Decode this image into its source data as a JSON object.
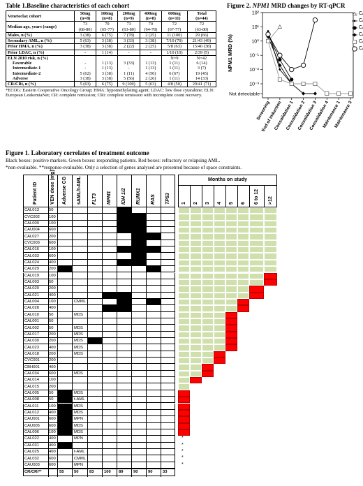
{
  "table1": {
    "title": "Table 1.Baseline characteristics of each cohort",
    "cohort_label": "Venetoclax cohort",
    "headers": [
      {
        "dose": "50mg",
        "n": "(n=8)"
      },
      {
        "dose": "100mg",
        "n": "(n=8)"
      },
      {
        "dose": "200mg",
        "n": "(n=9)"
      },
      {
        "dose": "400mg",
        "n": "(n=8)"
      },
      {
        "dose": "600mg",
        "n": "(n=11)"
      },
      {
        "dose": "Total",
        "n": "(n=44)"
      }
    ],
    "rows": [
      {
        "label": "Median age, years (range)",
        "cells": [
          "73\n(68-80)",
          "70\n(65-77)",
          "73\n(63-80)",
          "70\n(64-78)",
          "72\n(67-77)",
          "72\n(63-80)"
        ]
      },
      {
        "label": "Males, n (%)",
        "cells": [
          "3 (38)",
          "6 (75)",
          "7 (78)",
          "2 (25)",
          "11 (100)",
          "29 (66)"
        ]
      },
      {
        "label": "Secondary AML, n (%)",
        "cells": [
          "5 (63)",
          "3 (38)",
          "3 (33)",
          "3 (38)",
          "7/10 (70)",
          "21/43 (49)"
        ]
      },
      {
        "label": "Prior HMA, n (%)",
        "cells": [
          "3 (38)",
          "3 (38)",
          "2 (22)",
          "2 (25)",
          "5/8 (63)",
          "15/40 (38)"
        ]
      },
      {
        "label": "Prior LDAC, n (%)",
        "cells": [
          "-",
          "1 (14)",
          "-",
          "-",
          "1/10 (10)",
          "2/39 (5)"
        ]
      }
    ],
    "eln": {
      "label": "ELN 2010 risk, n (%)",
      "n_row": [
        "",
        "",
        "",
        "",
        "N=9",
        "N=42"
      ],
      "subrows": [
        {
          "label": "Favorable",
          "cells": [
            "-",
            "1 (13)",
            "3 (33)",
            "1 (13)",
            "1 (11)",
            "6 (14)"
          ]
        },
        {
          "label": "Intermediate-1",
          "cells": [
            "-",
            "1 (13)",
            "-",
            "1 (13)",
            "1 (11)",
            "3 (7)"
          ]
        },
        {
          "label": "Intermediate-2",
          "cells": [
            "5 (62)",
            "3 (38)",
            "1 (11)",
            "4 (50)",
            "6 (67)",
            "19 (45)"
          ]
        },
        {
          "label": "Adverse",
          "cells": [
            "3 (38)",
            "3 (38)",
            "5 (56)",
            "2 (26)",
            "1 (11)",
            "14 (33)"
          ]
        }
      ]
    },
    "crri": {
      "label": "CR/CRi, n (%)",
      "cells": [
        "5 (63)",
        "6 (75)",
        "9 (100)",
        "5 (63)",
        "4/8 (50)",
        "29/41 (71)"
      ]
    },
    "footnote": "*ECOG: Eastern Cooperative Oncology Group; HMA: hypomethylating agent; LDAC: low dose cytarabine; ELN: European LeukemiaNet; CR: complete remission; CRi: complete remission with incomplete count recovery."
  },
  "figure2": {
    "title_pre": "Figure 2. ",
    "title_gene": "NPM1",
    "title_post": " MRD changes by RT-qPCR",
    "ylabel": "NPM1  MRD (%)",
    "not_detectable": "Not detectable",
    "y_ticks": [
      "10²",
      "10¹",
      "10⁰",
      "10⁻¹",
      "10⁻²",
      "10⁻³"
    ],
    "chart_data": {
      "type": "line",
      "categories": [
        "Screening",
        "End of induction",
        "Consolidation 1",
        "Consolidation 2",
        "Consolidation 3",
        "Consolidation 4",
        "Maintenance 1",
        "Maintenance 3"
      ],
      "yscale": "log",
      "series": [
        {
          "name": "CAL013",
          "marker": "triangle-open",
          "values": [
            1,
            10,
            null,
            null,
            null,
            null,
            null,
            null
          ]
        },
        {
          "name": "CAL015",
          "marker": "diamond-small",
          "values": [
            5,
            0.01,
            0.001,
            null,
            null,
            null,
            null,
            null
          ]
        },
        {
          "name": "CAL021",
          "marker": "circle-filled",
          "values": [
            3,
            0.05,
            0.002,
            null,
            null,
            null,
            null,
            null
          ]
        },
        {
          "name": "CAL026",
          "marker": "diamond-filled",
          "values": [
            2,
            0.02,
            0.001,
            0.0005,
            0.0002,
            null,
            null,
            null
          ]
        },
        {
          "name": "CAU004",
          "marker": "square-open",
          "values": [
            1,
            0.002,
            0.001,
            0.001,
            0.001,
            0.0005,
            0.0005,
            0.0005
          ]
        },
        {
          "name": "CAL020",
          "marker": "circle-open",
          "values": [
            3,
            0.1,
            0.01,
            0.02,
            30,
            null,
            null,
            null
          ]
        }
      ]
    }
  },
  "figure1": {
    "title": "Figure 1. Laboratory correlates of treatment outcome",
    "caption1": "Black boxes: positive markers. Green boxes: responding patients. Red boxes: refractory or relapsing AML.",
    "caption2": "*non-evaluable. **response-evaluable. Only a selection of genes analysed are presented because of space constraints.",
    "col_headers": [
      "Patient ID",
      "VEN dose (mg)",
      "Adverse CG",
      "sAML/t-AML",
      "FLT3",
      "NPM1",
      "IDH 1/2",
      "RUNX1",
      "RAS",
      "TP53"
    ],
    "months_header": "Months on study",
    "months": [
      "1",
      "2",
      "3",
      "4",
      "5",
      "6",
      "6 to 12",
      ">12"
    ],
    "patients": [
      {
        "id": "CAL013",
        "dose": "50",
        "cg": 0,
        "saml": "",
        "m": [
          0,
          0,
          1,
          0,
          0,
          0,
          0
        ],
        "green": 8,
        "red": 0,
        "star": 0
      },
      {
        "id": "CVC002",
        "dose": "100",
        "cg": 0,
        "saml": "",
        "m": [
          0,
          0,
          1,
          1,
          0,
          0,
          0
        ],
        "green": 8,
        "red": 0,
        "star": 0
      },
      {
        "id": "CAL009",
        "dose": "100",
        "cg": 0,
        "saml": "",
        "m": [
          0,
          0,
          1,
          1,
          0,
          0,
          0
        ],
        "green": 8,
        "red": 0,
        "star": 0
      },
      {
        "id": "CAU004",
        "dose": "600",
        "cg": 0,
        "saml": "",
        "m": [
          0,
          0,
          1,
          1,
          0,
          0,
          0
        ],
        "green": 8,
        "red": 0,
        "star": 0
      },
      {
        "id": "CAL027",
        "dose": "200",
        "cg": 0,
        "saml": "",
        "m": [
          0,
          0,
          0,
          1,
          1,
          0,
          0
        ],
        "green": 8,
        "red": 0,
        "star": 0
      },
      {
        "id": "CVC003",
        "dose": "600",
        "cg": 0,
        "saml": "",
        "m": [
          0,
          0,
          0,
          1,
          0,
          0,
          0
        ],
        "green": 8,
        "red": 0,
        "star": 0
      },
      {
        "id": "CAL016",
        "dose": "100",
        "cg": 0,
        "saml": "",
        "m": [
          0,
          0,
          1,
          1,
          1,
          0,
          0
        ],
        "green": 8,
        "red": 0,
        "star": 0
      },
      {
        "id": "CAL033",
        "dose": "600",
        "cg": 0,
        "saml": "",
        "m": [
          0,
          0,
          0,
          1,
          0,
          0,
          0
        ],
        "green": 8,
        "red": 0,
        "star": 0
      },
      {
        "id": "CAL024",
        "dose": "400",
        "cg": 0,
        "saml": "",
        "m": [
          0,
          0,
          1,
          1,
          0,
          0,
          0
        ],
        "green": 8,
        "red": 0,
        "star": 0
      },
      {
        "id": "CAL029",
        "dose": "200",
        "cg": 1,
        "saml": "",
        "m": [
          0,
          0,
          0,
          0,
          1,
          0,
          0
        ],
        "green": 8,
        "red": 0,
        "star": 0
      },
      {
        "id": "CAL019",
        "dose": "100",
        "cg": 0,
        "saml": "",
        "m": [
          0,
          0,
          0,
          0,
          0,
          0,
          0
        ],
        "green": 7,
        "red": 1,
        "star": 0
      },
      {
        "id": "CAL003",
        "dose": "50",
        "cg": 0,
        "saml": "",
        "m": [
          0,
          0,
          0,
          0,
          0,
          0,
          0
        ],
        "green": 7,
        "red": 1,
        "star": 0
      },
      {
        "id": "CAL020",
        "dose": "200",
        "cg": 0,
        "saml": "",
        "m": [
          0,
          0,
          0,
          0,
          0,
          0,
          0
        ],
        "green": 6,
        "red": 1,
        "star": 0
      },
      {
        "id": "CAL021",
        "dose": "400",
        "cg": 0,
        "saml": "",
        "m": [
          0,
          1,
          1,
          0,
          0,
          0,
          0
        ],
        "green": 6,
        "red": 1,
        "star": 0
      },
      {
        "id": "CAL004",
        "dose": "100",
        "cg": 0,
        "saml": "CMML",
        "m": [
          0,
          0,
          1,
          0,
          1,
          0,
          0
        ],
        "green": 5,
        "red": 1,
        "star": 0
      },
      {
        "id": "CAL028",
        "dose": "400",
        "cg": 0,
        "saml": "",
        "m": [
          0,
          1,
          1,
          0,
          0,
          0,
          0
        ],
        "green": 5,
        "red": 1,
        "star": 0
      },
      {
        "id": "CAL010",
        "dose": "50",
        "cg": 0,
        "saml": "MDS",
        "m": [
          0,
          0,
          0,
          0,
          0,
          0,
          0
        ],
        "green": 4,
        "red": 1,
        "star": 0
      },
      {
        "id": "CAL001",
        "dose": "50",
        "cg": 0,
        "saml": "",
        "m": [
          0,
          0,
          0,
          0,
          0,
          0,
          0
        ],
        "green": 4,
        "red": 1,
        "star": 0
      },
      {
        "id": "CAL002",
        "dose": "50",
        "cg": 0,
        "saml": "MDS",
        "m": [
          0,
          0,
          0,
          0,
          0,
          0,
          0
        ],
        "green": 4,
        "red": 1,
        "star": 0
      },
      {
        "id": "CAL017",
        "dose": "200",
        "cg": 0,
        "saml": "MDS",
        "m": [
          0,
          0,
          0,
          0,
          0,
          0,
          0
        ],
        "green": 4,
        "red": 1,
        "star": 0
      },
      {
        "id": "CAL030",
        "dose": "200",
        "cg": 0,
        "saml": "MDS",
        "m": [
          1,
          0,
          0,
          0,
          0,
          0,
          0
        ],
        "green": 4,
        "red": 1,
        "star": 0
      },
      {
        "id": "CAL023",
        "dose": "400",
        "cg": 0,
        "saml": "MDS",
        "m": [
          0,
          0,
          0,
          0,
          0,
          0,
          0
        ],
        "green": 4,
        "red": 1,
        "star": 0
      },
      {
        "id": "CAL018",
        "dose": "200",
        "cg": 0,
        "saml": "MDS",
        "m": [
          0,
          0,
          0,
          0,
          0,
          0,
          0
        ],
        "green": 3,
        "red": 1,
        "star": 0
      },
      {
        "id": "CVC001",
        "dose": "200",
        "cg": 0,
        "saml": "",
        "m": [
          0,
          0,
          0,
          0,
          0,
          0,
          0
        ],
        "green": 3,
        "red": 1,
        "star": 0
      },
      {
        "id": "CBH001",
        "dose": "400",
        "cg": 0,
        "saml": "",
        "m": [
          0,
          0,
          0,
          0,
          0,
          0,
          0
        ],
        "green": 2,
        "red": 1,
        "star": 0
      },
      {
        "id": "CAL034",
        "dose": "600",
        "cg": 0,
        "saml": "MDS",
        "m": [
          0,
          0,
          0,
          0,
          0,
          0,
          0
        ],
        "green": 2,
        "red": 1,
        "star": 0
      },
      {
        "id": "CAL014",
        "dose": "100",
        "cg": 0,
        "saml": "",
        "m": [
          0,
          0,
          0,
          0,
          0,
          0,
          0
        ],
        "green": 1,
        "red": 1,
        "star": 0
      },
      {
        "id": "CAL015",
        "dose": "200",
        "cg": 0,
        "saml": "",
        "m": [
          0,
          0,
          0,
          0,
          0,
          0,
          0
        ],
        "green": 1,
        "red": 0,
        "star": 0
      },
      {
        "id": "CAL005",
        "dose": "50",
        "cg": 1,
        "saml": "MDS",
        "m": [
          0,
          0,
          0,
          0,
          0,
          0,
          1
        ],
        "green": 0,
        "red": 1,
        "star": 0
      },
      {
        "id": "CAL008",
        "dose": "50",
        "cg": 1,
        "saml": "t-AML",
        "m": [
          0,
          0,
          0,
          0,
          0,
          0,
          1
        ],
        "green": 0,
        "red": 1,
        "star": 0
      },
      {
        "id": "CAL011",
        "dose": "100",
        "cg": 1,
        "saml": "MDS",
        "m": [
          0,
          0,
          0,
          0,
          0,
          0,
          1
        ],
        "green": 0,
        "red": 1,
        "star": 0
      },
      {
        "id": "CAL012",
        "dose": "400",
        "cg": 1,
        "saml": "MDS",
        "m": [
          0,
          0,
          0,
          0,
          0,
          0,
          1
        ],
        "green": 0,
        "red": 1,
        "star": 0
      },
      {
        "id": "CAU001",
        "dose": "600",
        "cg": 1,
        "saml": "MPN",
        "m": [
          0,
          0,
          0,
          0,
          0,
          0,
          1
        ],
        "green": 0,
        "red": 1,
        "star": 0
      },
      {
        "id": "CAU005",
        "dose": "600",
        "cg": 1,
        "saml": "MDS",
        "m": [
          0,
          0,
          0,
          0,
          0,
          0,
          1
        ],
        "green": 0,
        "red": 1,
        "star": 0
      },
      {
        "id": "CAL006",
        "dose": "100",
        "cg": 1,
        "saml": "MDS",
        "m": [
          0,
          0,
          0,
          0,
          0,
          0,
          1
        ],
        "green": 0,
        "red": 1,
        "star": 0
      },
      {
        "id": "CAL022",
        "dose": "400",
        "cg": 0,
        "saml": "MPN",
        "m": [
          0,
          0,
          0,
          0,
          0,
          0,
          0
        ],
        "green": 0,
        "red": 0,
        "star": 1
      },
      {
        "id": "CAL031",
        "dose": "400",
        "cg": 1,
        "saml": "",
        "m": [
          0,
          0,
          0,
          0,
          0,
          0,
          1
        ],
        "green": 0,
        "red": 0,
        "star": 1
      },
      {
        "id": "CAL025",
        "dose": "400",
        "cg": 0,
        "saml": "t-AML",
        "m": [
          0,
          0,
          0,
          0,
          0,
          0,
          0
        ],
        "green": 0,
        "red": 0,
        "star": 1
      },
      {
        "id": "CAL032",
        "dose": "600",
        "cg": 0,
        "saml": "CMML",
        "m": [
          0,
          0,
          0,
          0,
          0,
          0,
          0
        ],
        "green": 0,
        "red": 0,
        "star": 1
      },
      {
        "id": "CAU003",
        "dose": "600",
        "cg": 0,
        "saml": "MPN",
        "m": [
          0,
          0,
          0,
          0,
          0,
          0,
          0
        ],
        "green": 0,
        "red": 0,
        "star": 1
      }
    ],
    "footer_label": "CR/CRi**",
    "footer_values": [
      "55",
      "50",
      "83",
      "100",
      "89",
      "90",
      "90",
      "33"
    ],
    "colors": {
      "black": "#000000",
      "green": "#cfe0ad",
      "red": "#ff0000",
      "grid": "#888888"
    }
  }
}
